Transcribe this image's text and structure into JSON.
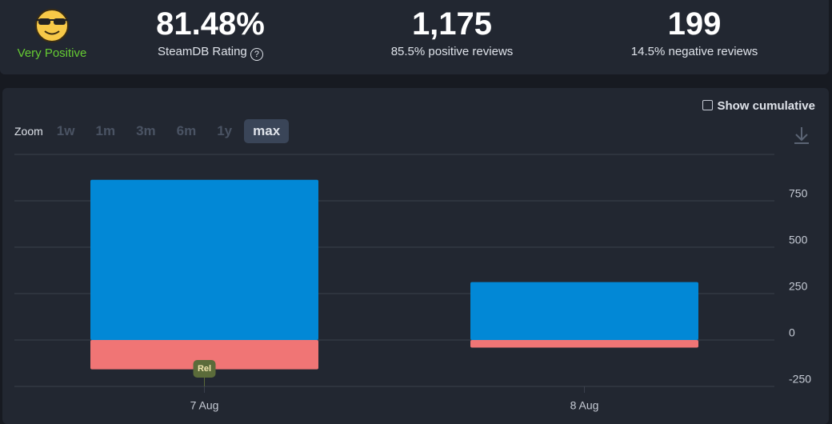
{
  "header": {
    "rating_label": "Very Positive",
    "rating_value": "81.48%",
    "rating_caption": "SteamDB Rating",
    "positive_count": "1,175",
    "positive_caption": "85.5% positive reviews",
    "negative_count": "199",
    "negative_caption": "14.5% negative reviews"
  },
  "controls": {
    "cumulative_label": "Show cumulative",
    "zoom_label": "Zoom",
    "zoom_options": [
      "1w",
      "1m",
      "3m",
      "6m",
      "1y",
      "max"
    ],
    "zoom_active": "max"
  },
  "chart_data": {
    "type": "bar",
    "stacked": true,
    "categories": [
      "7 Aug",
      "8 Aug"
    ],
    "series": [
      {
        "color": "#0288d6",
        "values": [
          863,
          312
        ]
      },
      {
        "color": "#f07575",
        "values": [
          -158,
          -41
        ]
      }
    ],
    "ylim": [
      -250,
      1000
    ],
    "yticks": [
      -250,
      0,
      250,
      500,
      750
    ],
    "grid": true,
    "annotations": [
      {
        "text": "Rel",
        "category": "7 Aug"
      }
    ]
  }
}
